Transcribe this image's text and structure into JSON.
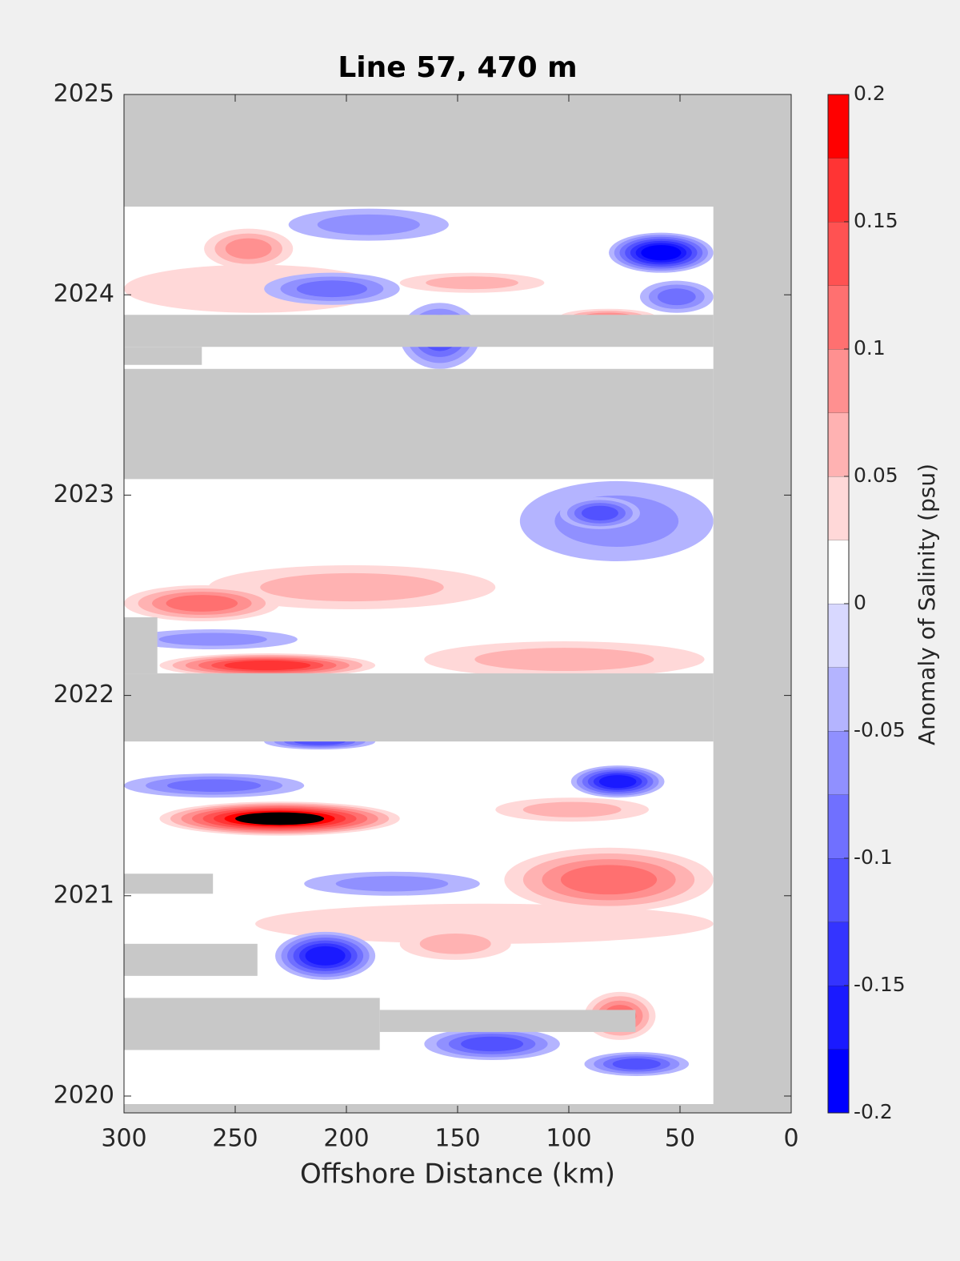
{
  "chart_data": {
    "type": "contour",
    "title": "Line 57, 470 m",
    "xlabel": "Offshore Distance (km)",
    "colorbar_label": "Anomaly of Salinity (psu)",
    "xlim": [
      300,
      0
    ],
    "xticks": [
      300,
      250,
      200,
      150,
      100,
      50,
      0
    ],
    "ylim": [
      2019.916,
      2025
    ],
    "yticks": [
      2020,
      2021,
      2022,
      2023,
      2024,
      2025
    ],
    "clim": [
      -0.2,
      0.2
    ],
    "cticks": [
      -0.2,
      -0.15,
      -0.1,
      -0.05,
      0,
      0.05,
      0.1,
      0.15,
      0.2
    ],
    "levels": [
      -0.2,
      -0.175,
      -0.15,
      -0.125,
      -0.1,
      -0.075,
      -0.05,
      -0.025,
      0,
      0.025,
      0.05,
      0.075,
      0.1,
      0.125,
      0.15,
      0.175,
      0.2
    ],
    "colormap": [
      "#0000ff",
      "#1a1aff",
      "#3434ff",
      "#5252ff",
      "#7070ff",
      "#9090ff",
      "#b4b4ff",
      "#d8d8ff",
      "#ffffff",
      "#ffd8d8",
      "#ffb2b2",
      "#ff9090",
      "#ff7070",
      "#ff5252",
      "#ff3434",
      "#ff0000"
    ],
    "missing_color": "#c8c8c8",
    "coverage": {
      "x": [
        300,
        35
      ],
      "y": [
        2019.96,
        2024.44
      ]
    },
    "gaps": [
      {
        "x": [
          300,
          35
        ],
        "y": [
          2023.74,
          2023.9
        ]
      },
      {
        "x": [
          300,
          265
        ],
        "y": [
          2023.65,
          2023.74
        ]
      },
      {
        "x": [
          300,
          35
        ],
        "y": [
          2023.08,
          2023.63
        ]
      },
      {
        "x": [
          300,
          35
        ],
        "y": [
          2021.77,
          2022.11
        ]
      },
      {
        "x": [
          300,
          285
        ],
        "y": [
          2022.11,
          2022.39
        ]
      },
      {
        "x": [
          300,
          260
        ],
        "y": [
          2021.01,
          2021.11
        ]
      },
      {
        "x": [
          300,
          240
        ],
        "y": [
          2020.6,
          2020.76
        ]
      },
      {
        "x": [
          300,
          185
        ],
        "y": [
          2020.23,
          2020.49
        ]
      },
      {
        "x": [
          185,
          70
        ],
        "y": [
          2020.32,
          2020.43
        ]
      }
    ],
    "features": [
      {
        "x": [
          300,
          183
        ],
        "y": [
          2023.91,
          2024.15
        ],
        "value": 0.025
      },
      {
        "x": [
          82,
          35
        ],
        "y": [
          2024.11,
          2024.31
        ],
        "value": -0.175
      },
      {
        "x": [
          226,
          154
        ],
        "y": [
          2024.27,
          2024.43
        ],
        "value": -0.05
      },
      {
        "x": [
          264,
          224
        ],
        "y": [
          2024.13,
          2024.33
        ],
        "value": 0.075
      },
      {
        "x": [
          176,
          111
        ],
        "y": [
          2024.01,
          2024.11
        ],
        "value": 0.05
      },
      {
        "x": [
          237,
          176
        ],
        "y": [
          2023.95,
          2024.11
        ],
        "value": -0.075
      },
      {
        "x": [
          176,
          140
        ],
        "y": [
          2023.63,
          2023.96
        ],
        "value": -0.1
      },
      {
        "x": [
          68,
          35
        ],
        "y": [
          2023.91,
          2024.07
        ],
        "value": -0.075
      },
      {
        "x": [
          104,
          61
        ],
        "y": [
          2023.85,
          2023.93
        ],
        "value": 0.075
      },
      {
        "x": [
          122,
          35
        ],
        "y": [
          2022.67,
          2023.07
        ],
        "value": -0.05
      },
      {
        "x": [
          104,
          68
        ],
        "y": [
          2022.83,
          2022.99
        ],
        "value": -0.1
      },
      {
        "x": [
          262,
          133
        ],
        "y": [
          2022.43,
          2022.65
        ],
        "value": 0.05
      },
      {
        "x": [
          300,
          230
        ],
        "y": [
          2022.37,
          2022.55
        ],
        "value": 0.1
      },
      {
        "x": [
          298,
          222
        ],
        "y": [
          2022.23,
          2022.33
        ],
        "value": -0.05
      },
      {
        "x": [
          165,
          39
        ],
        "y": [
          2022.09,
          2022.27
        ],
        "value": 0.05
      },
      {
        "x": [
          284,
          187
        ],
        "y": [
          2022.09,
          2022.21
        ],
        "value": 0.15
      },
      {
        "x": [
          237,
          187
        ],
        "y": [
          2021.73,
          2021.81
        ],
        "value": -0.1
      },
      {
        "x": [
          300,
          219
        ],
        "y": [
          2021.49,
          2021.61
        ],
        "value": -0.075
      },
      {
        "x": [
          99,
          57
        ],
        "y": [
          2021.49,
          2021.65
        ],
        "value": -0.15
      },
      {
        "x": [
          284,
          176
        ],
        "y": [
          2021.3,
          2021.47
        ],
        "value": 0.2
      },
      {
        "x": [
          133,
          64
        ],
        "y": [
          2021.37,
          2021.49
        ],
        "value": 0.05
      },
      {
        "x": [
          129,
          35
        ],
        "y": [
          2020.92,
          2021.24
        ],
        "value": 0.1
      },
      {
        "x": [
          219,
          140
        ],
        "y": [
          2021.0,
          2021.12
        ],
        "value": -0.05
      },
      {
        "x": [
          241,
          35
        ],
        "y": [
          2020.76,
          2020.96
        ],
        "value": 0.025
      },
      {
        "x": [
          232,
          187
        ],
        "y": [
          2020.58,
          2020.82
        ],
        "value": -0.15
      },
      {
        "x": [
          176,
          126
        ],
        "y": [
          2020.68,
          2020.84
        ],
        "value": 0.05
      },
      {
        "x": [
          93,
          61
        ],
        "y": [
          2020.28,
          2020.52
        ],
        "value": 0.1
      },
      {
        "x": [
          165,
          104
        ],
        "y": [
          2020.18,
          2020.34
        ],
        "value": -0.1
      },
      {
        "x": [
          93,
          46
        ],
        "y": [
          2020.1,
          2020.22
        ],
        "value": -0.1
      }
    ]
  }
}
